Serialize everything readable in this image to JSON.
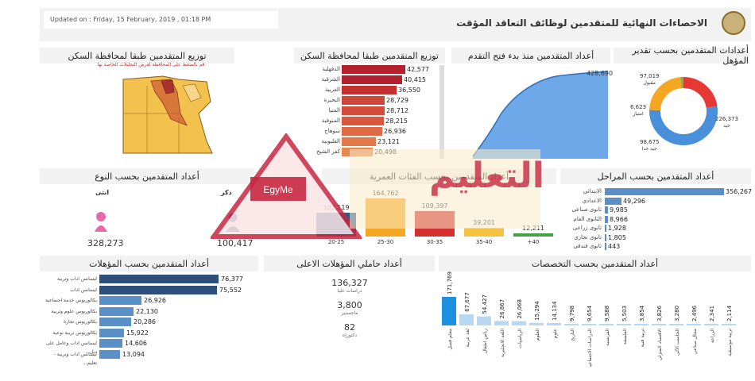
{
  "header": {
    "updated": "Updated on : Friday, 15 February, 2019 , 01:18 PM",
    "title": "الاحصاءات النهائية للمتقدمين لوظائف التعاقد المؤقت"
  },
  "titles": {
    "map": "توزيع المتقدمين طبقا لمحافظة السكن",
    "map_hint": "قم بالضغط على المحافظة لعرض التحليلات الخاصة بها",
    "gov": "توزيع المتقدمين طبقا لمحافظة السكن",
    "progress": "أعداد المتقدمين منذ بدء فتح التقدم",
    "grade": "أعدادات المتقدمين بحسب تقدير المؤهل",
    "gender": "أعداد المتقدمين بحسب النوع",
    "age": "أعداد المتقدمين بحسب الفئات العمرية",
    "stages": "أعداد المتقدمين بحسب المراحل",
    "quals": "أعداد المتقدمين بحسب المؤهلات",
    "higher": "أعداد حاملي المؤهلات الاعلى",
    "specs": "أعداد المتقدمين بحسب التخصصات"
  },
  "gov_bars": [
    {
      "label": "الدقهلية",
      "value": "42,577",
      "n": 42577
    },
    {
      "label": "الشرقية",
      "value": "40,415",
      "n": 40415
    },
    {
      "label": "الغربية",
      "value": "36,550",
      "n": 36550
    },
    {
      "label": "البحيرة",
      "value": "28,729",
      "n": 28729
    },
    {
      "label": "المنيا",
      "value": "28,712",
      "n": 28712
    },
    {
      "label": "المنوفية",
      "value": "28,215",
      "n": 28215
    },
    {
      "label": "سوهاج",
      "value": "26,936",
      "n": 26936
    },
    {
      "label": "القليوبية",
      "value": "23,121",
      "n": 23121
    },
    {
      "label": "كفر الشيخ",
      "value": "20,498",
      "n": 20498
    }
  ],
  "progress": {
    "total": "428,690"
  },
  "grade": {
    "segments": [
      {
        "label": "جيد",
        "value": "226,373",
        "n": 226373,
        "color": "#4a8fd9"
      },
      {
        "label": "جيد جدا",
        "value": "98,675",
        "n": 98675,
        "color": "#f5a623"
      },
      {
        "label": "امتياز",
        "value": "6,623",
        "n": 6623,
        "color": "#7cb342"
      },
      {
        "label": "مقبول",
        "value": "97,019",
        "n": 97019,
        "color": "#e53935"
      }
    ]
  },
  "gender": {
    "female_label": "انثى",
    "female_value": "328,273",
    "male_label": "ذكر",
    "male_value": "100,417"
  },
  "age": {
    "groups": [
      {
        "label": "20-25",
        "value": "103,119",
        "n": 103119,
        "color": "#2e5a8a"
      },
      {
        "label": "25-30",
        "value": "164,762",
        "n": 164762,
        "color": "#f5a623"
      },
      {
        "label": "30-35",
        "value": "109,397",
        "n": 109397,
        "color": "#d32f2f"
      },
      {
        "label": "35-40",
        "value": "39,201",
        "n": 39201,
        "color": "#f5c242"
      },
      {
        "label": "+40",
        "value": "12,211",
        "n": 12211,
        "color": "#43a047"
      }
    ]
  },
  "stages": [
    {
      "label": "الابتدائي",
      "value": "356,267",
      "n": 356267
    },
    {
      "label": "الاعدادي",
      "value": "49,296",
      "n": 49296
    },
    {
      "label": "ثانوى صناعى",
      "value": "9,985",
      "n": 9985
    },
    {
      "label": "الثانوى العام",
      "value": "8,966",
      "n": 8966
    },
    {
      "label": "ثانوى زراعى",
      "value": "1,928",
      "n": 1928
    },
    {
      "label": "ثانوى تجارى",
      "value": "1,805",
      "n": 1805
    },
    {
      "label": "ثانوى فندقى",
      "value": "443",
      "n": 443
    }
  ],
  "quals": [
    {
      "label": "ليسانس اداب وتربية",
      "value": "76,377",
      "n": 76377
    },
    {
      "label": "ليسانس اداب",
      "value": "75,552",
      "n": 75552
    },
    {
      "label": "بكالوريوس خدمة اجتماعية",
      "value": "26,926",
      "n": 26926
    },
    {
      "label": "بكالوريوس علوم وتربية",
      "value": "22,130",
      "n": 22130
    },
    {
      "label": "بكالوريوس تجارة",
      "value": "20,286",
      "n": 20286
    },
    {
      "label": "بكالوريوس تربية نوعية",
      "value": "15,922",
      "n": 15922
    },
    {
      "label": "ليسانس اداب وعامل على دبل...",
      "value": "14,606",
      "n": 14606
    },
    {
      "label": "ليسانس اداب وتربية - تعليم...",
      "value": "13,094",
      "n": 13094
    }
  ],
  "higher": [
    {
      "value": "136,327",
      "label": "دراسات عليا"
    },
    {
      "value": "3,800",
      "label": "ماجستير"
    },
    {
      "value": "82",
      "label": "دكتوراه"
    }
  ],
  "specs": [
    {
      "label": "معلم فصل",
      "value": "171,769",
      "n": 171769
    },
    {
      "label": "لغة عربية",
      "value": "67,677",
      "n": 67677
    },
    {
      "label": "رياض اطفال",
      "value": "54,427",
      "n": 54427
    },
    {
      "label": "اللغة الانجليزية",
      "value": "26,867",
      "n": 26867
    },
    {
      "label": "الرياضيات",
      "value": "26,068",
      "n": 26068
    },
    {
      "label": "العلوم",
      "value": "15,294",
      "n": 15294
    },
    {
      "label": "علوم",
      "value": "14,134",
      "n": 14134
    },
    {
      "label": "التاريخ",
      "value": "9,798",
      "n": 9798
    },
    {
      "label": "الدراسات الاجتماعية",
      "value": "9,654",
      "n": 9654
    },
    {
      "label": "الفرنسية",
      "value": "9,588",
      "n": 9588
    },
    {
      "label": "الفلسفة",
      "value": "5,503",
      "n": 5503
    },
    {
      "label": "تربية فنية",
      "value": "3,854",
      "n": 3854
    },
    {
      "label": "الاقتصاد المنزلي",
      "value": "3,826",
      "n": 3826
    },
    {
      "label": "الحاسب الآلي",
      "value": "3,280",
      "n": 3280
    },
    {
      "label": "مجال صناعي",
      "value": "2,496",
      "n": 2496
    },
    {
      "label": "الزراعة",
      "value": "2,341",
      "n": 2341
    },
    {
      "label": "تربية موسيقية",
      "value": "2,114",
      "n": 2114
    }
  ],
  "watermark": {
    "site": "EgyMe",
    "text": "التعليم"
  }
}
